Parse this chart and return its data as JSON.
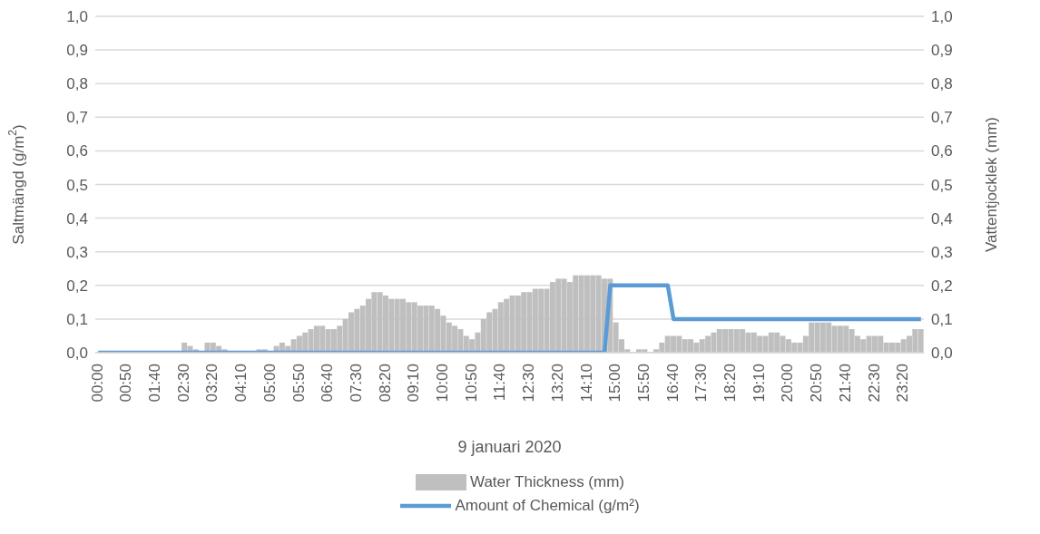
{
  "chart_data": {
    "type": "bar",
    "xlabel": "9 januari 2020",
    "ylabel": "Saltmängd (g/m$^{2}$)",
    "y2label": "Vattentjocklek (mm)",
    "categories": [
      "00:00",
      null,
      null,
      null,
      null,
      "00:50",
      null,
      null,
      null,
      null,
      "01:40",
      null,
      null,
      null,
      null,
      "02:30",
      null,
      null,
      null,
      null,
      "03:20",
      null,
      null,
      null,
      null,
      "04:10",
      null,
      null,
      null,
      null,
      "05:00",
      null,
      null,
      null,
      null,
      "05:50",
      null,
      null,
      null,
      null,
      "06:40",
      null,
      null,
      null,
      null,
      "07:30",
      null,
      null,
      null,
      null,
      "08:20",
      null,
      null,
      null,
      null,
      "09:10",
      null,
      null,
      null,
      null,
      "10:00",
      null,
      null,
      null,
      null,
      "10:50",
      null,
      null,
      null,
      null,
      "11:40",
      null,
      null,
      null,
      null,
      "12:30",
      null,
      null,
      null,
      null,
      "13:20",
      null,
      null,
      null,
      null,
      "14:10",
      null,
      null,
      null,
      null,
      "15:00",
      null,
      null,
      null,
      null,
      "15:50",
      null,
      null,
      null,
      null,
      "16:40",
      null,
      null,
      null,
      null,
      "17:30",
      null,
      null,
      null,
      null,
      "18:20",
      null,
      null,
      null,
      null,
      "19:10",
      null,
      null,
      null,
      null,
      "20:00",
      null,
      null,
      null,
      null,
      "20:50",
      null,
      null,
      null,
      null,
      "21:40",
      null,
      null,
      null,
      null,
      "22:30",
      null,
      null,
      null,
      null,
      "23:20",
      null,
      null,
      null
    ],
    "series": [
      {
        "name": "Water Thickness (mm)",
        "axis": "y2",
        "color": "#bfbfbf",
        "values": [
          0,
          0,
          0,
          0,
          0,
          0,
          0,
          0,
          0,
          0,
          0,
          0,
          0,
          0,
          0,
          0.03,
          0.02,
          0.01,
          0,
          0.03,
          0.03,
          0.02,
          0.01,
          0,
          0,
          0,
          0,
          0,
          0.01,
          0.01,
          0,
          0.02,
          0.03,
          0.02,
          0.04,
          0.05,
          0.06,
          0.07,
          0.08,
          0.08,
          0.07,
          0.07,
          0.08,
          0.1,
          0.12,
          0.13,
          0.14,
          0.16,
          0.18,
          0.18,
          0.17,
          0.16,
          0.16,
          0.16,
          0.15,
          0.15,
          0.14,
          0.14,
          0.14,
          0.13,
          0.11,
          0.09,
          0.08,
          0.07,
          0.05,
          0.04,
          0.06,
          0.1,
          0.12,
          0.13,
          0.15,
          0.16,
          0.17,
          0.17,
          0.18,
          0.18,
          0.19,
          0.19,
          0.19,
          0.21,
          0.22,
          0.22,
          0.21,
          0.23,
          0.23,
          0.23,
          0.23,
          0.23,
          0.22,
          0.22,
          0.09,
          0.04,
          0.01,
          0,
          0.01,
          0.01,
          0,
          0.01,
          0.03,
          0.05,
          0.05,
          0.05,
          0.04,
          0.04,
          0.03,
          0.04,
          0.05,
          0.06,
          0.07,
          0.07,
          0.07,
          0.07,
          0.07,
          0.06,
          0.06,
          0.05,
          0.05,
          0.06,
          0.06,
          0.05,
          0.04,
          0.03,
          0.03,
          0.05,
          0.09,
          0.09,
          0.09,
          0.09,
          0.08,
          0.08,
          0.08,
          0.07,
          0.05,
          0.04,
          0.05,
          0.05,
          0.05,
          0.03,
          0.03,
          0.03,
          0.04,
          0.05,
          0.07,
          0.07
        ]
      },
      {
        "name": "Amount of Chemical (g/m²)",
        "type": "line",
        "color": "#5b9bd5",
        "values": [
          0,
          0,
          0,
          0,
          0,
          0,
          0,
          0,
          0,
          0,
          0,
          0,
          0,
          0,
          0,
          0,
          0,
          0,
          0,
          0,
          0,
          0,
          0,
          0,
          0,
          0,
          0,
          0,
          0,
          0,
          0,
          0,
          0,
          0,
          0,
          0,
          0,
          0,
          0,
          0,
          0,
          0,
          0,
          0,
          0,
          0,
          0,
          0,
          0,
          0,
          0,
          0,
          0,
          0,
          0,
          0,
          0,
          0,
          0,
          0,
          0,
          0,
          0,
          0,
          0,
          0,
          0,
          0,
          0,
          0,
          0,
          0,
          0,
          0,
          0,
          0,
          0,
          0,
          0,
          0,
          0,
          0,
          0,
          0,
          0,
          0,
          0,
          0,
          0,
          0.2,
          0.2,
          0.2,
          0.2,
          0.2,
          0.2,
          0.2,
          0.2,
          0.2,
          0.2,
          0.2,
          0.1,
          0.1,
          0.1,
          0.1,
          0.1,
          0.1,
          0.1,
          0.1,
          0.1,
          0.1,
          0.1,
          0.1,
          0.1,
          0.1,
          0.1,
          0.1,
          0.1,
          0.1,
          0.1,
          0.1,
          0.1,
          0.1,
          0.1,
          0.1,
          0.1,
          0.1,
          0.1,
          0.1,
          0.1,
          0.1,
          0.1,
          0.1,
          0.1,
          0.1,
          0.1,
          0.1,
          0.1,
          0.1,
          0.1,
          0.1,
          0.1,
          0.1,
          0.1,
          0.1
        ]
      }
    ],
    "ylim": [
      0,
      1
    ],
    "yticks": [
      {
        "value": 0,
        "label": "0,0"
      },
      {
        "value": 0.1,
        "label": "0,1"
      },
      {
        "value": 0.2,
        "label": "0,2"
      },
      {
        "value": 0.3,
        "label": "0,3"
      },
      {
        "value": 0.4,
        "label": "0,4"
      },
      {
        "value": 0.5,
        "label": "0,5"
      },
      {
        "value": 0.6,
        "label": "0,6"
      },
      {
        "value": 0.7,
        "label": "0,7"
      },
      {
        "value": 0.8,
        "label": "0,8"
      },
      {
        "value": 0.9,
        "label": "0,9"
      },
      {
        "value": 1,
        "label": "1,0"
      }
    ],
    "y2lim": [
      0,
      1
    ],
    "y2ticks": [
      {
        "value": 0,
        "label": "0,0"
      },
      {
        "value": 0.1,
        "label": "0,1"
      },
      {
        "value": 0.2,
        "label": "0,2"
      },
      {
        "value": 0.3,
        "label": "0,3"
      },
      {
        "value": 0.4,
        "label": "0,4"
      },
      {
        "value": 0.5,
        "label": "0,5"
      },
      {
        "value": 0.6,
        "label": "0,6"
      },
      {
        "value": 0.7,
        "label": "0,7"
      },
      {
        "value": 0.8,
        "label": "0,8"
      },
      {
        "value": 0.9,
        "label": "0,9"
      },
      {
        "value": 1,
        "label": "1,0"
      }
    ],
    "grid": "y",
    "legend": "bottom",
    "marker": "none",
    "line_style": "solid"
  }
}
